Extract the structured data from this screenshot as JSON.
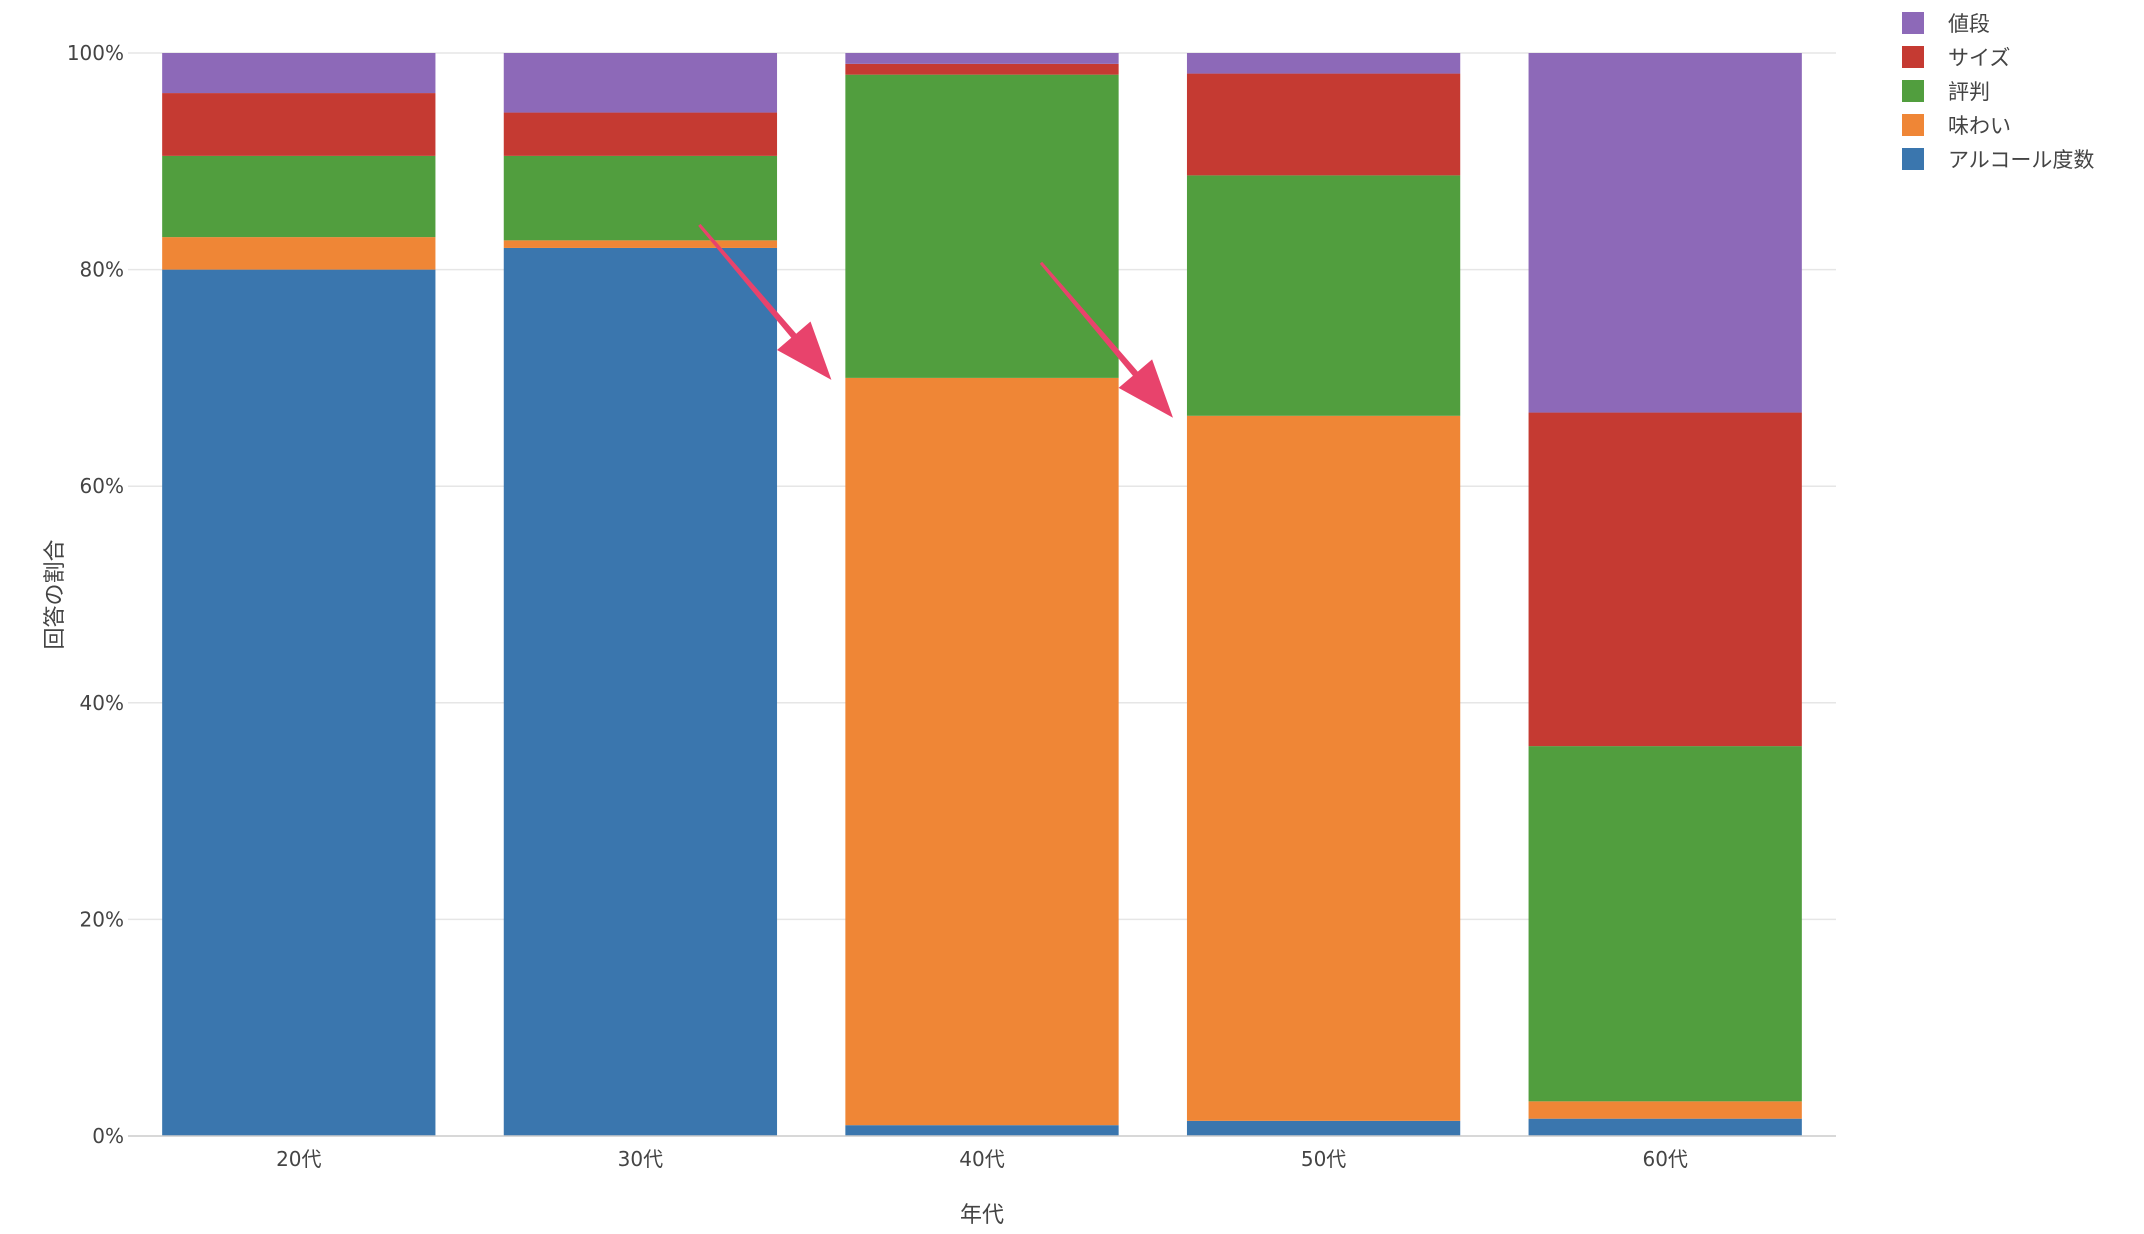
{
  "chart_data": {
    "type": "bar",
    "stacked": true,
    "categories": [
      "20代",
      "30代",
      "40代",
      "50代",
      "60代"
    ],
    "series": [
      {
        "name": "アルコール度数",
        "color": "#3a76ae",
        "values": [
          80.0,
          82.0,
          1.0,
          1.4,
          1.6
        ]
      },
      {
        "name": "味わい",
        "color": "#ef8636",
        "values": [
          3.0,
          0.7,
          69.0,
          65.1,
          1.6
        ]
      },
      {
        "name": "評判",
        "color": "#519e3e",
        "values": [
          7.5,
          7.8,
          28.0,
          22.2,
          32.8
        ]
      },
      {
        "name": "サイズ",
        "color": "#c53a32",
        "values": [
          5.8,
          4.0,
          1.0,
          9.4,
          30.8
        ]
      },
      {
        "name": "値段",
        "color": "#8d69b8",
        "values": [
          3.7,
          5.5,
          1.0,
          1.9,
          33.2
        ]
      }
    ],
    "legend_order": [
      "値段",
      "サイズ",
      "評判",
      "味わい",
      "アルコール度数"
    ],
    "ylim": [
      0,
      100
    ],
    "y_ticks": [
      "0%",
      "20%",
      "40%",
      "60%",
      "80%",
      "100%"
    ],
    "xlabel": "年代",
    "ylabel": "回答の割合",
    "grid": true,
    "legend_position": "top-right",
    "annotations": [
      {
        "type": "arrow",
        "color": "#e8436c",
        "target_category": "40代",
        "target_y": 70.0
      },
      {
        "type": "arrow",
        "color": "#e8436c",
        "target_category": "50代",
        "target_y": 66.5
      }
    ]
  }
}
